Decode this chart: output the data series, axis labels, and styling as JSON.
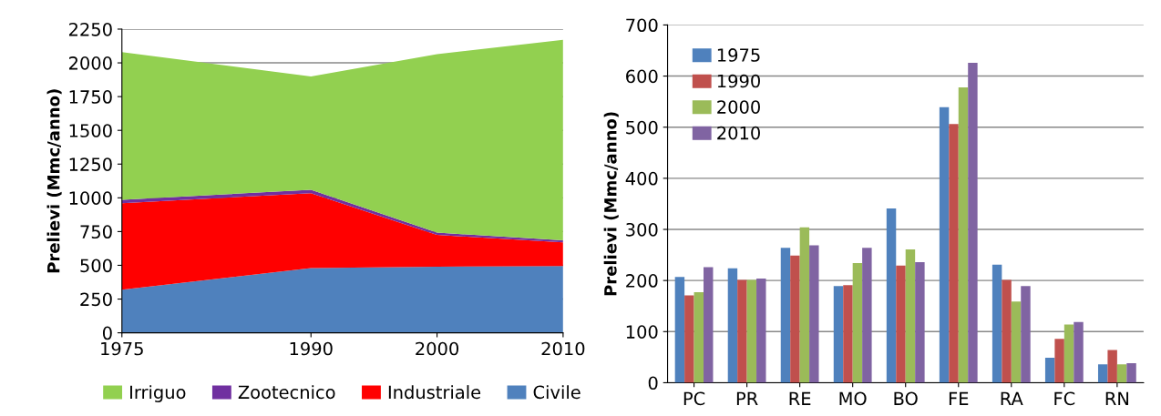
{
  "chart_data": [
    {
      "type": "area",
      "stacked": true,
      "ylabel": "Prelievi (Mmc/anno)",
      "x": [
        1975,
        1990,
        2000,
        2010
      ],
      "xlim": [
        1975,
        2010
      ],
      "xticks": [
        1975,
        1990,
        2000,
        2010
      ],
      "ylim": [
        0,
        2250
      ],
      "yticks": [
        0,
        250,
        500,
        750,
        1000,
        1250,
        1500,
        1750,
        2000,
        2250
      ],
      "grid": "y",
      "legend": "bottom",
      "series": [
        {
          "name": "Civile",
          "color": "#4f81bd",
          "values": [
            320,
            480,
            490,
            495
          ]
        },
        {
          "name": "Industriale",
          "color": "#ff0000",
          "values": [
            640,
            555,
            235,
            175
          ]
        },
        {
          "name": "Zootecnico",
          "color": "#7030a0",
          "values": [
            25,
            25,
            17,
            15
          ]
        },
        {
          "name": "Irriguo",
          "color": "#92d050",
          "values": [
            1095,
            840,
            1323,
            1485
          ]
        }
      ]
    },
    {
      "type": "bar",
      "ylabel": "Prelievi (Mmc/anno)",
      "categories": [
        "PC",
        "PR",
        "RE",
        "MO",
        "BO",
        "FE",
        "RA",
        "FC",
        "RN"
      ],
      "ylim": [
        0,
        700
      ],
      "yticks": [
        0,
        100,
        200,
        300,
        400,
        500,
        600,
        700
      ],
      "grid": "y",
      "legend": "top left",
      "series": [
        {
          "name": "1975",
          "color": "#4f81bd",
          "values": [
            207,
            224,
            264,
            189,
            341,
            539,
            231,
            49,
            36
          ]
        },
        {
          "name": "1990",
          "color": "#c0504d",
          "values": [
            171,
            201,
            249,
            191,
            229,
            506,
            201,
            86,
            64
          ]
        },
        {
          "name": "2000",
          "color": "#9bbb59",
          "values": [
            177,
            201,
            304,
            234,
            261,
            578,
            159,
            114,
            36
          ]
        },
        {
          "name": "2010",
          "color": "#8064a2",
          "values": [
            226,
            204,
            269,
            264,
            236,
            626,
            189,
            119,
            38
          ]
        }
      ]
    }
  ]
}
